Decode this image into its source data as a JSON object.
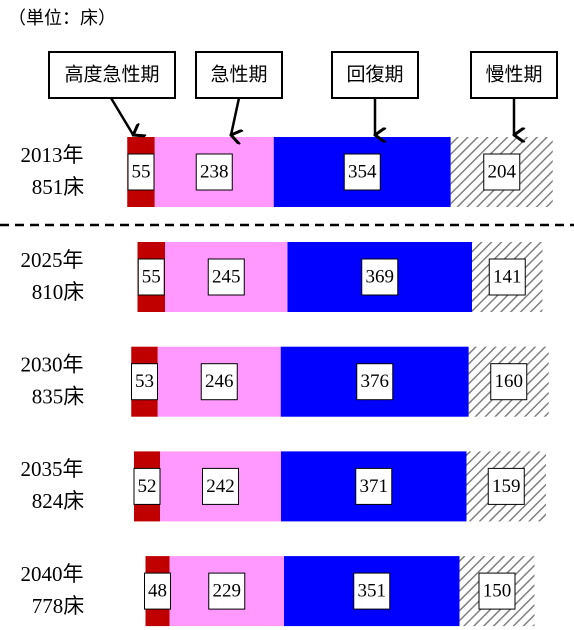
{
  "chart_data": {
    "type": "stacked-bar-horizontal",
    "subtitle": "（単位：床）",
    "categories": [
      "2013年",
      "2025年",
      "2030年",
      "2035年",
      "2040年"
    ],
    "totals": {
      "values": [
        851,
        810,
        835,
        824,
        778
      ],
      "value_labels": [
        "851床",
        "810床",
        "835床",
        "824床",
        "778床"
      ]
    },
    "series": [
      {
        "name": "高度急性期",
        "color": "#c00000",
        "values": [
          55,
          55,
          53,
          52,
          48
        ]
      },
      {
        "name": "急性期",
        "color": "#ff99ff",
        "values": [
          238,
          245,
          246,
          242,
          229
        ]
      },
      {
        "name": "回復期",
        "color": "#0000ff",
        "values": [
          354,
          369,
          376,
          371,
          351
        ]
      },
      {
        "name": "慢性期",
        "color": "#808080",
        "hatch": true,
        "values": [
          204,
          141,
          160,
          159,
          150
        ]
      }
    ]
  }
}
